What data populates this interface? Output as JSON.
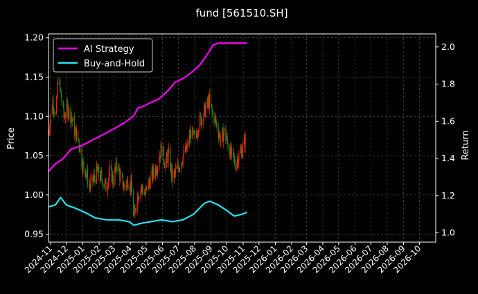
{
  "chart_data": {
    "type": "line",
    "title": "fund [561510.SH]",
    "ylabel_left": "Price",
    "ylabel_right": "Return",
    "ylim_left": [
      0.94,
      1.205
    ],
    "ylim_right": [
      0.95,
      2.07
    ],
    "xlim": [
      "2024-10-28",
      "2026-11-01"
    ],
    "yticks_left": [
      "0.95",
      "1.00",
      "1.05",
      "1.10",
      "1.15",
      "1.20"
    ],
    "yticks_right": [
      "1.0",
      "1.2",
      "1.4",
      "1.6",
      "1.8",
      "2.0"
    ],
    "xticks": [
      "2024-11",
      "2024-12",
      "2025-01",
      "2025-02",
      "2025-03",
      "2025-04",
      "2025-05",
      "2025-06",
      "2025-07",
      "2025-08",
      "2025-09",
      "2025-10",
      "2025-11",
      "2025-12",
      "2026-01",
      "2026-02",
      "2026-03",
      "2026-04",
      "2026-05",
      "2026-06",
      "2026-07",
      "2026-08",
      "2026-09",
      "2026-10"
    ],
    "grid": true,
    "legend_position": "top-left",
    "colors": {
      "background": "#000000",
      "ai": "#ff00ff",
      "bh": "#22e4f0",
      "up": "#ff2200",
      "down": "#1a8c1a",
      "text": "#ffffff",
      "grid": "#555555"
    },
    "price_series": [
      {
        "date": "2024-10-28",
        "close": 1.08
      },
      {
        "date": "2024-11-05",
        "close": 1.12
      },
      {
        "date": "2024-11-11",
        "close": 1.1
      },
      {
        "date": "2024-11-15",
        "close": 1.15
      },
      {
        "date": "2024-11-20",
        "close": 1.13
      },
      {
        "date": "2024-11-26",
        "close": 1.1
      },
      {
        "date": "2024-12-03",
        "close": 1.11
      },
      {
        "date": "2024-12-10",
        "close": 1.1
      },
      {
        "date": "2024-12-17",
        "close": 1.08
      },
      {
        "date": "2024-12-24",
        "close": 1.07
      },
      {
        "date": "2024-12-31",
        "close": 1.04
      },
      {
        "date": "2025-01-07",
        "close": 1.03
      },
      {
        "date": "2025-01-14",
        "close": 1.01
      },
      {
        "date": "2025-01-21",
        "close": 1.02
      },
      {
        "date": "2025-01-28",
        "close": 1.03
      },
      {
        "date": "2025-02-07",
        "close": 1.02
      },
      {
        "date": "2025-02-14",
        "close": 1.01
      },
      {
        "date": "2025-02-21",
        "close": 1.03
      },
      {
        "date": "2025-02-28",
        "close": 1.02
      },
      {
        "date": "2025-03-07",
        "close": 1.04
      },
      {
        "date": "2025-03-14",
        "close": 1.02
      },
      {
        "date": "2025-03-21",
        "close": 1.01
      },
      {
        "date": "2025-03-28",
        "close": 1.02
      },
      {
        "date": "2025-04-03",
        "close": 1.01
      },
      {
        "date": "2025-04-08",
        "close": 0.97
      },
      {
        "date": "2025-04-15",
        "close": 1.0
      },
      {
        "date": "2025-04-22",
        "close": 1.01
      },
      {
        "date": "2025-04-29",
        "close": 1.0
      },
      {
        "date": "2025-05-09",
        "close": 1.02
      },
      {
        "date": "2025-05-16",
        "close": 1.03
      },
      {
        "date": "2025-05-23",
        "close": 1.04
      },
      {
        "date": "2025-05-30",
        "close": 1.06
      },
      {
        "date": "2025-06-06",
        "close": 1.04
      },
      {
        "date": "2025-06-13",
        "close": 1.05
      },
      {
        "date": "2025-06-20",
        "close": 1.02
      },
      {
        "date": "2025-06-27",
        "close": 1.03
      },
      {
        "date": "2025-07-04",
        "close": 1.04
      },
      {
        "date": "2025-07-11",
        "close": 1.05
      },
      {
        "date": "2025-07-18",
        "close": 1.06
      },
      {
        "date": "2025-07-25",
        "close": 1.08
      },
      {
        "date": "2025-08-01",
        "close": 1.07
      },
      {
        "date": "2025-08-08",
        "close": 1.09
      },
      {
        "date": "2025-08-15",
        "close": 1.1
      },
      {
        "date": "2025-08-22",
        "close": 1.11
      },
      {
        "date": "2025-08-29",
        "close": 1.12
      },
      {
        "date": "2025-09-05",
        "close": 1.1
      },
      {
        "date": "2025-09-12",
        "close": 1.09
      },
      {
        "date": "2025-09-19",
        "close": 1.07
      },
      {
        "date": "2025-09-26",
        "close": 1.08
      },
      {
        "date": "2025-10-10",
        "close": 1.05
      },
      {
        "date": "2025-10-17",
        "close": 1.04
      },
      {
        "date": "2025-10-24",
        "close": 1.05
      },
      {
        "date": "2025-10-31",
        "close": 1.06
      },
      {
        "date": "2025-11-05",
        "close": 1.07
      }
    ],
    "series": [
      {
        "name": "AI Strategy",
        "axis": "right",
        "x": [
          "2024-10-28",
          "2024-11-10",
          "2024-11-25",
          "2024-12-10",
          "2024-12-31",
          "2025-01-20",
          "2025-02-10",
          "2025-03-01",
          "2025-03-20",
          "2025-04-08",
          "2025-04-15",
          "2025-04-25",
          "2025-05-10",
          "2025-05-25",
          "2025-06-10",
          "2025-06-25",
          "2025-07-10",
          "2025-07-25",
          "2025-08-10",
          "2025-08-25",
          "2025-09-05",
          "2025-09-15",
          "2025-10-01",
          "2025-10-20",
          "2025-11-08"
        ],
        "values": [
          1.33,
          1.37,
          1.4,
          1.45,
          1.47,
          1.5,
          1.53,
          1.56,
          1.59,
          1.63,
          1.67,
          1.68,
          1.7,
          1.72,
          1.76,
          1.81,
          1.83,
          1.86,
          1.9,
          1.96,
          2.01,
          2.02,
          2.02,
          2.02,
          2.02
        ]
      },
      {
        "name": "Buy-and-Hold",
        "axis": "right",
        "x": [
          "2024-10-28",
          "2024-11-10",
          "2024-11-20",
          "2024-12-01",
          "2024-12-20",
          "2025-01-05",
          "2025-01-25",
          "2025-02-15",
          "2025-03-10",
          "2025-03-30",
          "2025-04-08",
          "2025-04-20",
          "2025-05-10",
          "2025-05-30",
          "2025-06-20",
          "2025-07-10",
          "2025-07-30",
          "2025-08-20",
          "2025-08-30",
          "2025-09-15",
          "2025-10-01",
          "2025-10-15",
          "2025-10-30",
          "2025-11-08"
        ],
        "values": [
          1.14,
          1.15,
          1.19,
          1.15,
          1.13,
          1.11,
          1.08,
          1.07,
          1.07,
          1.06,
          1.04,
          1.05,
          1.06,
          1.07,
          1.06,
          1.07,
          1.1,
          1.16,
          1.17,
          1.15,
          1.12,
          1.09,
          1.1,
          1.11
        ]
      }
    ]
  }
}
